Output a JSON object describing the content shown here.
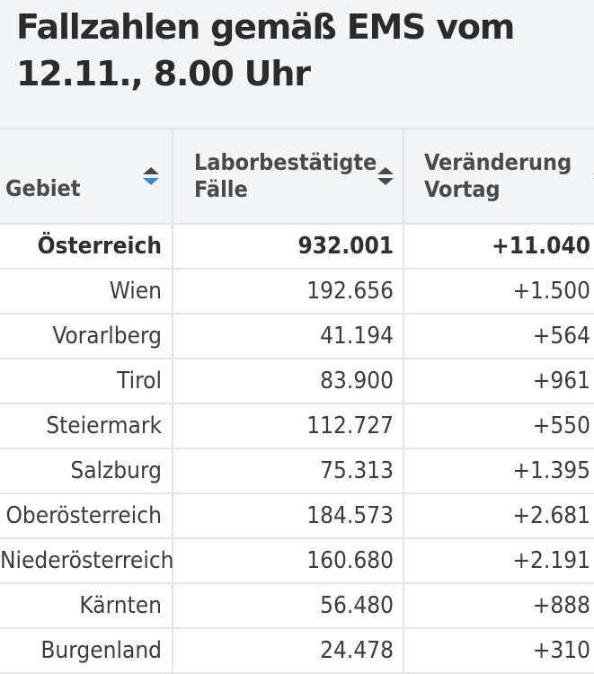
{
  "title": "Fallzahlen gemäß EMS vom 12.11., 8.00 Uhr",
  "table": {
    "headers": {
      "region": "Gebiet",
      "cases": "Laborbestätigte Fälle",
      "change": "Veränderung Vortag"
    },
    "sorted_column": "region",
    "rows": [
      {
        "region": "Österreich",
        "cases": "932.001",
        "change": "+11.040"
      },
      {
        "region": "Wien",
        "cases": "192.656",
        "change": "+1.500"
      },
      {
        "region": "Vorarlberg",
        "cases": "41.194",
        "change": "+564"
      },
      {
        "region": "Tirol",
        "cases": "83.900",
        "change": "+961"
      },
      {
        "region": "Steiermark",
        "cases": "112.727",
        "change": "+550"
      },
      {
        "region": "Salzburg",
        "cases": "75.313",
        "change": "+1.395"
      },
      {
        "region": "Oberösterreich",
        "cases": "184.573",
        "change": "+2.681"
      },
      {
        "region": "Niederösterreich",
        "cases": "160.680",
        "change": "+2.191"
      },
      {
        "region": "Kärnten",
        "cases": "56.480",
        "change": "+888"
      },
      {
        "region": "Burgenland",
        "cases": "24.478",
        "change": "+310"
      }
    ]
  },
  "colors": {
    "sort_active": "#2b8ee0",
    "header_bg": "#f4f5f7",
    "page_bg": "#f3f4f6"
  }
}
